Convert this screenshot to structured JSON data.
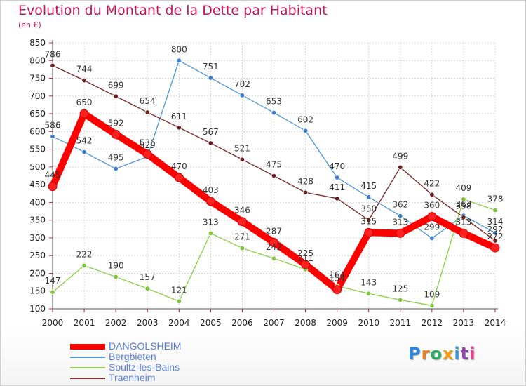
{
  "title": "Evolution du Montant de la Dette par Habitant",
  "unit": "(en €)",
  "brand": {
    "text": "Proxiti",
    "letters": [
      "P",
      "r",
      "o",
      "x",
      "i",
      "t",
      "i"
    ],
    "letter_colors": [
      "#2e86de",
      "#e67e22",
      "#27ae60",
      "#f39c12",
      "#3498db",
      "#8e44ad",
      "#e84393"
    ]
  },
  "colors": {
    "title": "#c2185b",
    "axis": "#333333",
    "grid": "#d8d8d8"
  },
  "chart_data": {
    "type": "line",
    "title": "Evolution du Montant de la Dette par Habitant",
    "ylabel": "(en €)",
    "xlabel": "",
    "ylim": [
      100,
      850
    ],
    "yticks": [
      100,
      150,
      200,
      250,
      300,
      350,
      400,
      450,
      500,
      550,
      600,
      650,
      700,
      750,
      800,
      850
    ],
    "x": [
      "2000",
      "2001",
      "2002",
      "2003",
      "2004",
      "2005",
      "2006",
      "2007",
      "2008",
      "2009",
      "2010",
      "2011",
      "2012",
      "2013",
      "2014"
    ],
    "grid": true,
    "legend_position": "bottom-left",
    "series": [
      {
        "name": "DANGOLSHEIM",
        "color": "#ff0000",
        "marker": "#ff2020",
        "thick": true,
        "values": [
          445,
          650,
          592,
          536,
          470,
          403,
          346,
          287,
          225,
          154,
          315,
          313,
          360,
          313,
          272
        ]
      },
      {
        "name": "Bergbieten",
        "color": "#5b9bd5",
        "marker": "#3b7fcf",
        "values": [
          586,
          542,
          495,
          529,
          800,
          751,
          702,
          653,
          602,
          470,
          415,
          362,
          299,
          363,
          314
        ]
      },
      {
        "name": "Soultz-les-Bains",
        "color": "#92d050",
        "marker": "#7cc63a",
        "values": [
          147,
          222,
          190,
          157,
          121,
          313,
          271,
          242,
          211,
          164,
          143,
          125,
          109,
          409,
          378
        ]
      },
      {
        "name": "Traenheim",
        "color": "#7b3030",
        "marker": "#6b2020",
        "values": [
          786,
          744,
          699,
          654,
          611,
          567,
          521,
          475,
          428,
          411,
          350,
          499,
          422,
          358,
          292
        ]
      }
    ]
  }
}
